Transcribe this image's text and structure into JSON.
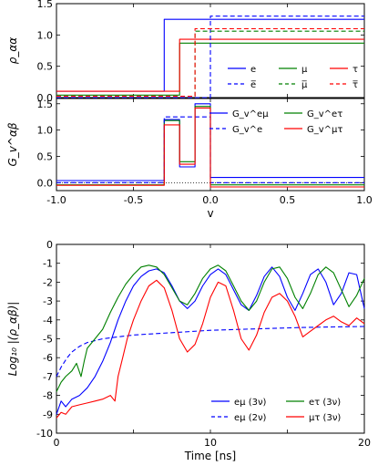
{
  "colors": {
    "e": "#0000ff",
    "mu": "#008000",
    "tau": "#ff0000",
    "zero_line": "#000000"
  },
  "chart_data": [
    {
      "type": "line",
      "panel": "top",
      "ylabel": "ρ_αα",
      "xlabel": "",
      "xlim": [
        -1.0,
        1.0
      ],
      "ylim": [
        0.0,
        1.5
      ],
      "yticks": [
        "0.0",
        "0.5",
        "1.0",
        "1.5"
      ],
      "xticks": [],
      "legend": {
        "placement": "right",
        "entries": [
          "e",
          "e̅",
          "μ",
          "μ̅",
          "τ",
          "τ̅"
        ]
      },
      "series": [
        {
          "name": "e",
          "color": "#0000ff",
          "dash": false,
          "x": [
            -1.0,
            -0.3,
            -0.3,
            1.0
          ],
          "y": [
            0.1,
            0.1,
            1.25,
            1.25
          ]
        },
        {
          "name": "μ",
          "color": "#008000",
          "dash": false,
          "x": [
            -1.0,
            -0.2,
            -0.2,
            1.0
          ],
          "y": [
            0.04,
            0.04,
            0.87,
            0.87
          ]
        },
        {
          "name": "τ",
          "color": "#ff0000",
          "dash": false,
          "x": [
            -1.0,
            -0.2,
            -0.2,
            1.0
          ],
          "y": [
            0.1,
            0.1,
            0.93,
            0.93
          ]
        },
        {
          "name": "e̅",
          "color": "#0000ff",
          "dash": true,
          "x": [
            -1.0,
            0.0,
            0.0,
            1.0
          ],
          "y": [
            0.0,
            0.0,
            1.3,
            1.3
          ]
        },
        {
          "name": "μ̅",
          "color": "#008000",
          "dash": true,
          "x": [
            -1.0,
            -0.1,
            -0.1,
            1.0
          ],
          "y": [
            0.02,
            0.02,
            1.06,
            1.06
          ]
        },
        {
          "name": "τ̅",
          "color": "#ff0000",
          "dash": true,
          "x": [
            -1.0,
            -0.1,
            -0.1,
            1.0
          ],
          "y": [
            0.02,
            0.02,
            1.1,
            1.1
          ]
        }
      ]
    },
    {
      "type": "line",
      "panel": "middle",
      "ylabel": "G_v^αβ",
      "xlabel": "v",
      "xlim": [
        -1.0,
        1.0
      ],
      "ylim": [
        -0.15,
        1.6
      ],
      "yticks": [
        "0.0",
        "0.5",
        "1.0",
        "1.5"
      ],
      "xticks": [
        "-1.0",
        "-0.5",
        "0.0",
        "0.5",
        "1.0"
      ],
      "legend": {
        "placement": "right",
        "entries": [
          "G_v^eμ",
          "G_v^eτ",
          "G_v^e",
          "G_v^μτ"
        ]
      },
      "series": [
        {
          "name": "G_v^eμ",
          "color": "#0000ff",
          "dash": false,
          "x": [
            -1.0,
            -0.3,
            -0.3,
            -0.2,
            -0.2,
            -0.1,
            -0.1,
            0.0,
            0.0,
            1.0
          ],
          "y": [
            0.04,
            0.04,
            1.2,
            1.2,
            0.3,
            0.3,
            1.5,
            1.5,
            0.1,
            0.1
          ]
        },
        {
          "name": "G_v^eτ",
          "color": "#008000",
          "dash": false,
          "x": [
            -1.0,
            -0.3,
            -0.3,
            -0.2,
            -0.2,
            -0.1,
            -0.1,
            0.0,
            0.0,
            1.0
          ],
          "y": [
            -0.04,
            -0.04,
            1.18,
            1.18,
            0.4,
            0.4,
            1.45,
            1.45,
            -0.04,
            -0.04
          ]
        },
        {
          "name": "G_v^e",
          "color": "#0000ff",
          "dash": true,
          "x": [
            -1.0,
            -0.3,
            -0.3,
            0.0,
            0.0,
            1.0
          ],
          "y": [
            0.0,
            0.0,
            1.25,
            1.25,
            0.0,
            0.0
          ]
        },
        {
          "name": "G_v^μτ",
          "color": "#ff0000",
          "dash": false,
          "x": [
            -1.0,
            -0.3,
            -0.3,
            -0.2,
            -0.2,
            -0.1,
            -0.1,
            0.0,
            0.0,
            1.0
          ],
          "y": [
            -0.05,
            -0.05,
            1.1,
            1.1,
            0.35,
            0.35,
            1.42,
            1.42,
            -0.08,
            -0.08
          ]
        }
      ]
    },
    {
      "type": "line",
      "panel": "bottom",
      "ylabel": "Log₁₀ |(ρ_αβ)|",
      "xlabel": "Time [ns]",
      "xlim": [
        0,
        20
      ],
      "ylim": [
        -10,
        0
      ],
      "yticks": [
        "0",
        "-1",
        "-2",
        "-3",
        "-4",
        "-5",
        "-6",
        "-7",
        "-8",
        "-9",
        "-10"
      ],
      "xticks": [
        "0",
        "10",
        "20"
      ],
      "legend": {
        "placement": "bottom-right",
        "entries": [
          "eμ (3ν)",
          "eμ (2ν)",
          "eτ (3ν)",
          "μτ (3ν)"
        ]
      },
      "series": [
        {
          "name": "eμ (3ν)",
          "color": "#0000ff",
          "dash": false,
          "x": [
            0,
            0.3,
            0.6,
            1.0,
            1.5,
            2.0,
            2.5,
            3.0,
            3.5,
            4.0,
            4.5,
            5.0,
            5.5,
            6.0,
            6.5,
            7.0,
            7.5,
            8.0,
            8.5,
            9.0,
            9.5,
            10.0,
            10.5,
            11.0,
            11.5,
            12.0,
            12.5,
            13.0,
            13.5,
            14.0,
            14.5,
            15.0,
            15.5,
            16.0,
            16.5,
            17.0,
            17.5,
            18.0,
            18.5,
            19.0,
            19.5,
            20.0
          ],
          "y": [
            -9.0,
            -8.3,
            -8.6,
            -8.2,
            -8.0,
            -7.6,
            -7.0,
            -6.2,
            -5.2,
            -4.0,
            -3.0,
            -2.2,
            -1.7,
            -1.4,
            -1.3,
            -1.5,
            -2.2,
            -3.0,
            -3.4,
            -3.0,
            -2.2,
            -1.6,
            -1.3,
            -1.6,
            -2.4,
            -3.2,
            -3.5,
            -2.7,
            -1.7,
            -1.2,
            -1.7,
            -2.8,
            -3.5,
            -2.6,
            -1.6,
            -1.3,
            -2.0,
            -3.2,
            -2.6,
            -1.5,
            -1.6,
            -3.4
          ]
        },
        {
          "name": "eμ (2ν)",
          "color": "#0000ff",
          "dash": true,
          "x": [
            0,
            0.3,
            0.7,
            1.0,
            1.5,
            2.0,
            3.0,
            4.0,
            5.0,
            6.0,
            8.0,
            10.0,
            12.0,
            14.0,
            16.0,
            18.0,
            20.0
          ],
          "y": [
            -7.0,
            -6.5,
            -6.0,
            -5.7,
            -5.4,
            -5.2,
            -5.0,
            -4.9,
            -4.8,
            -4.75,
            -4.65,
            -4.55,
            -4.5,
            -4.45,
            -4.4,
            -4.37,
            -4.35
          ]
        },
        {
          "name": "eτ (3ν)",
          "color": "#008000",
          "dash": false,
          "x": [
            0,
            0.3,
            0.6,
            1.0,
            1.3,
            1.6,
            1.8,
            2.0,
            2.5,
            3.0,
            3.5,
            4.0,
            4.5,
            5.0,
            5.5,
            6.0,
            6.5,
            7.0,
            7.5,
            8.0,
            8.5,
            9.0,
            9.5,
            10.0,
            10.5,
            11.0,
            11.5,
            12.0,
            12.5,
            13.0,
            13.5,
            14.0,
            14.5,
            15.0,
            15.5,
            16.0,
            16.5,
            17.0,
            17.5,
            18.0,
            18.5,
            19.0,
            19.5,
            20.0
          ],
          "y": [
            -7.8,
            -7.3,
            -7.0,
            -6.7,
            -6.3,
            -7.0,
            -6.2,
            -5.5,
            -5.0,
            -4.5,
            -3.6,
            -2.8,
            -2.1,
            -1.6,
            -1.2,
            -1.1,
            -1.2,
            -1.6,
            -2.3,
            -3.0,
            -3.2,
            -2.6,
            -1.8,
            -1.3,
            -1.1,
            -1.4,
            -2.2,
            -3.0,
            -3.5,
            -3.0,
            -2.0,
            -1.3,
            -1.2,
            -1.8,
            -2.8,
            -3.4,
            -2.6,
            -1.6,
            -1.2,
            -1.5,
            -2.4,
            -3.3,
            -2.7,
            -1.8
          ]
        },
        {
          "name": "μτ (3ν)",
          "color": "#ff0000",
          "dash": false,
          "x": [
            0,
            0.3,
            0.6,
            1.0,
            1.5,
            2.0,
            2.5,
            3.0,
            3.5,
            3.8,
            4.0,
            4.3,
            4.6,
            5.0,
            5.5,
            6.0,
            6.5,
            7.0,
            7.5,
            8.0,
            8.5,
            9.0,
            9.5,
            10.0,
            10.5,
            11.0,
            11.5,
            12.0,
            12.5,
            13.0,
            13.5,
            14.0,
            14.5,
            15.0,
            15.5,
            16.0,
            16.5,
            17.0,
            17.5,
            18.0,
            18.5,
            19.0,
            19.5,
            20.0
          ],
          "y": [
            -9.2,
            -8.9,
            -9.0,
            -8.6,
            -8.5,
            -8.4,
            -8.3,
            -8.2,
            -8.0,
            -8.3,
            -7.0,
            -6.0,
            -5.0,
            -4.0,
            -3.0,
            -2.2,
            -1.9,
            -2.3,
            -3.5,
            -5.0,
            -5.7,
            -5.3,
            -4.2,
            -2.8,
            -2.0,
            -2.2,
            -3.5,
            -5.0,
            -5.6,
            -4.8,
            -3.6,
            -2.8,
            -2.6,
            -3.0,
            -3.8,
            -4.9,
            -4.6,
            -4.3,
            -4.0,
            -3.8,
            -4.1,
            -4.3,
            -3.9,
            -4.2
          ]
        }
      ]
    }
  ]
}
